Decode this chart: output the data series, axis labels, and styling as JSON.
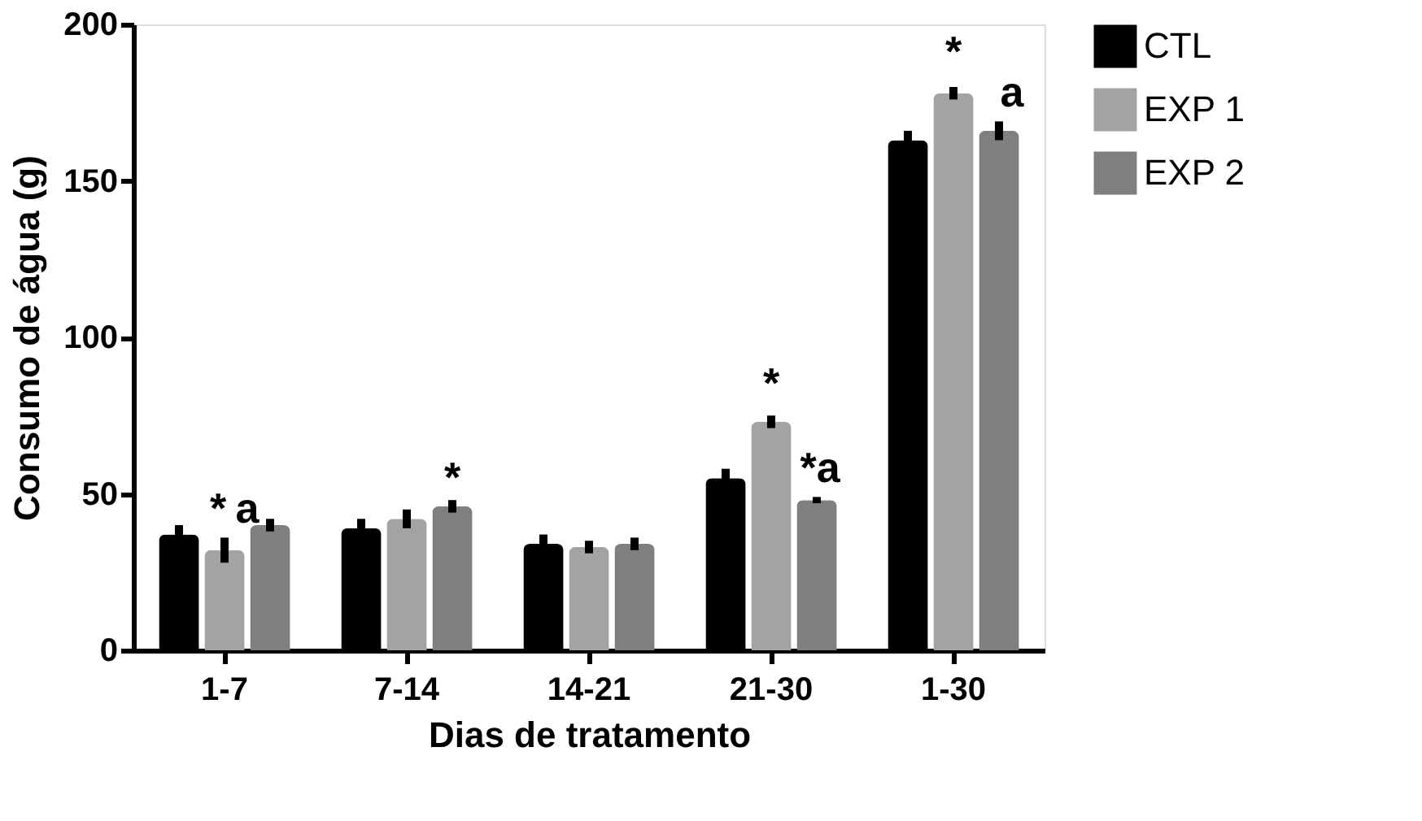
{
  "chart_data": {
    "type": "bar",
    "xlabel": "Dias de tratamento",
    "ylabel": "Consumo de água (g)",
    "categories": [
      "1-7",
      "7-14",
      "14-21",
      "21-30",
      "1-30"
    ],
    "series": [
      {
        "name": "CTL",
        "color": "#000000",
        "values": [
          37,
          39,
          34,
          55,
          163
        ],
        "errors": [
          3,
          3,
          3,
          3,
          3
        ]
      },
      {
        "name": "EXP 1",
        "color": "#a3a3a6",
        "values": [
          32,
          42,
          33,
          73,
          178
        ],
        "errors": [
          4,
          3,
          2,
          2,
          2
        ]
      },
      {
        "name": "EXP 2",
        "color": "#7f7f7f",
        "values": [
          40,
          46,
          34,
          48,
          166
        ],
        "errors": [
          2,
          2,
          2,
          1,
          3
        ]
      }
    ],
    "ylim": [
      0,
      200
    ],
    "yticks": [
      0,
      50,
      100,
      150,
      200
    ],
    "grid": false,
    "legend": "top right",
    "annotations": [
      "*",
      "a",
      "*",
      "*",
      "*a",
      "*",
      "a"
    ]
  }
}
